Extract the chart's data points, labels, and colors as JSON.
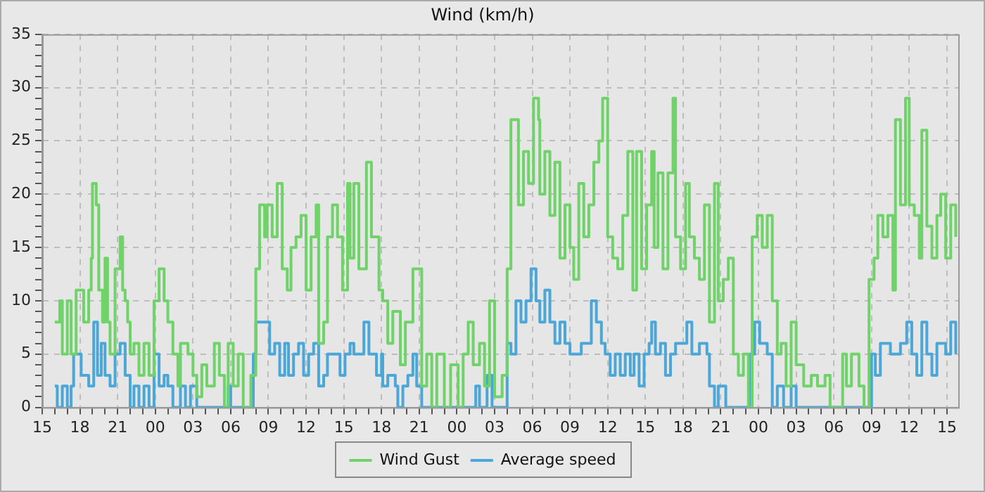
{
  "chart_data": {
    "type": "step",
    "title": "Wind (km/h)",
    "legend": "bottom",
    "grid": true,
    "line_style": "solid",
    "marker": "none",
    "xlim": [
      15,
      87.9
    ],
    "xticks": [
      {
        "value": 15,
        "label": "15"
      },
      {
        "value": 16,
        "label": null
      },
      {
        "value": 17,
        "label": null
      },
      {
        "value": 18,
        "label": "18"
      },
      {
        "value": 19,
        "label": null
      },
      {
        "value": 20,
        "label": null
      },
      {
        "value": 21,
        "label": "21"
      },
      {
        "value": 22,
        "label": null
      },
      {
        "value": 23,
        "label": null
      },
      {
        "value": 24,
        "label": "00"
      },
      {
        "value": 25,
        "label": null
      },
      {
        "value": 26,
        "label": null
      },
      {
        "value": 27,
        "label": "03"
      },
      {
        "value": 28,
        "label": null
      },
      {
        "value": 29,
        "label": null
      },
      {
        "value": 30,
        "label": "06"
      },
      {
        "value": 31,
        "label": null
      },
      {
        "value": 32,
        "label": null
      },
      {
        "value": 33,
        "label": "09"
      },
      {
        "value": 34,
        "label": null
      },
      {
        "value": 35,
        "label": null
      },
      {
        "value": 36,
        "label": "12"
      },
      {
        "value": 37,
        "label": null
      },
      {
        "value": 38,
        "label": null
      },
      {
        "value": 39,
        "label": "15"
      },
      {
        "value": 40,
        "label": null
      },
      {
        "value": 41,
        "label": null
      },
      {
        "value": 42,
        "label": "18"
      },
      {
        "value": 43,
        "label": null
      },
      {
        "value": 44,
        "label": null
      },
      {
        "value": 45,
        "label": "21"
      },
      {
        "value": 46,
        "label": null
      },
      {
        "value": 47,
        "label": null
      },
      {
        "value": 48,
        "label": "00"
      },
      {
        "value": 49,
        "label": null
      },
      {
        "value": 50,
        "label": null
      },
      {
        "value": 51,
        "label": "03"
      },
      {
        "value": 52,
        "label": null
      },
      {
        "value": 53,
        "label": null
      },
      {
        "value": 54,
        "label": "06"
      },
      {
        "value": 55,
        "label": null
      },
      {
        "value": 56,
        "label": null
      },
      {
        "value": 57,
        "label": "09"
      },
      {
        "value": 58,
        "label": null
      },
      {
        "value": 59,
        "label": null
      },
      {
        "value": 60,
        "label": "12"
      },
      {
        "value": 61,
        "label": null
      },
      {
        "value": 62,
        "label": null
      },
      {
        "value": 63,
        "label": "15"
      },
      {
        "value": 64,
        "label": null
      },
      {
        "value": 65,
        "label": null
      },
      {
        "value": 66,
        "label": "18"
      },
      {
        "value": 67,
        "label": null
      },
      {
        "value": 68,
        "label": null
      },
      {
        "value": 69,
        "label": "21"
      },
      {
        "value": 70,
        "label": null
      },
      {
        "value": 71,
        "label": null
      },
      {
        "value": 72,
        "label": "00"
      },
      {
        "value": 73,
        "label": null
      },
      {
        "value": 74,
        "label": null
      },
      {
        "value": 75,
        "label": "03"
      },
      {
        "value": 76,
        "label": null
      },
      {
        "value": 77,
        "label": null
      },
      {
        "value": 78,
        "label": "06"
      },
      {
        "value": 79,
        "label": null
      },
      {
        "value": 80,
        "label": null
      },
      {
        "value": 81,
        "label": "09"
      },
      {
        "value": 82,
        "label": null
      },
      {
        "value": 83,
        "label": null
      },
      {
        "value": 84,
        "label": "12"
      },
      {
        "value": 85,
        "label": null
      },
      {
        "value": 86,
        "label": null
      },
      {
        "value": 87,
        "label": "15"
      }
    ],
    "ylim": [
      0,
      35
    ],
    "yticks": [
      0,
      {
        "value": 1,
        "label": null
      },
      {
        "value": 2,
        "label": null
      },
      {
        "value": 3,
        "label": null
      },
      {
        "value": 4,
        "label": null
      },
      5,
      {
        "value": 6,
        "label": null
      },
      {
        "value": 7,
        "label": null
      },
      {
        "value": 8,
        "label": null
      },
      {
        "value": 9,
        "label": null
      },
      10,
      {
        "value": 11,
        "label": null
      },
      {
        "value": 12,
        "label": null
      },
      {
        "value": 13,
        "label": null
      },
      {
        "value": 14,
        "label": null
      },
      15,
      {
        "value": 16,
        "label": null
      },
      {
        "value": 17,
        "label": null
      },
      {
        "value": 18,
        "label": null
      },
      {
        "value": 19,
        "label": null
      },
      20,
      {
        "value": 21,
        "label": null
      },
      {
        "value": 22,
        "label": null
      },
      {
        "value": 23,
        "label": null
      },
      {
        "value": 24,
        "label": null
      },
      25,
      {
        "value": 26,
        "label": null
      },
      {
        "value": 27,
        "label": null
      },
      {
        "value": 28,
        "label": null
      },
      {
        "value": 29,
        "label": null
      },
      30,
      {
        "value": 31,
        "label": null
      },
      {
        "value": 32,
        "label": null
      },
      {
        "value": 33,
        "label": null
      },
      {
        "value": 34,
        "label": null
      },
      35
    ],
    "series": [
      {
        "name": "Wind Gust",
        "color": "#6fd36a",
        "x": [
          16.0,
          16.4,
          16.6,
          17.0,
          17.3,
          17.7,
          18.1,
          18.3,
          18.7,
          18.9,
          19.0,
          19.3,
          19.5,
          19.8,
          20.0,
          20.2,
          20.4,
          20.8,
          21.2,
          21.4,
          21.6,
          21.8,
          22.0,
          22.3,
          22.7,
          23.1,
          23.5,
          23.9,
          24.3,
          24.7,
          25.0,
          25.4,
          25.8,
          26.0,
          26.6,
          27.0,
          27.3,
          27.7,
          28.1,
          28.7,
          29.1,
          29.5,
          29.8,
          30.2,
          30.6,
          31.0,
          31.6,
          32.0,
          32.3,
          32.7,
          32.9,
          33.3,
          33.7,
          34.1,
          34.5,
          34.8,
          35.2,
          35.6,
          36.0,
          36.4,
          36.8,
          37.0,
          37.4,
          37.7,
          38.1,
          38.5,
          38.9,
          39.3,
          39.5,
          39.8,
          40.2,
          40.8,
          41.2,
          41.8,
          42.1,
          42.5,
          42.9,
          43.5,
          43.9,
          44.5,
          44.8,
          45.2,
          45.6,
          46.0,
          46.4,
          47.0,
          47.5,
          48.1,
          48.5,
          48.9,
          49.3,
          49.8,
          50.2,
          50.6,
          51.0,
          51.6,
          52.0,
          52.3,
          52.9,
          53.3,
          53.7,
          54.1,
          54.5,
          54.6,
          55.0,
          55.4,
          55.8,
          56.2,
          56.6,
          57.0,
          57.3,
          57.7,
          58.1,
          58.5,
          58.9,
          59.3,
          59.6,
          60.0,
          60.4,
          60.8,
          61.2,
          61.6,
          62.0,
          62.3,
          62.7,
          63.1,
          63.5,
          63.7,
          64.0,
          64.4,
          64.8,
          65.2,
          65.4,
          65.8,
          66.2,
          66.5,
          66.9,
          67.3,
          67.7,
          68.1,
          68.5,
          68.8,
          69.2,
          69.6,
          70.0,
          70.4,
          70.8,
          71.2,
          71.5,
          71.9,
          72.3,
          72.7,
          73.1,
          73.5,
          73.8,
          74.2,
          74.6,
          75.0,
          75.6,
          76.2,
          76.7,
          77.3,
          77.7,
          78.7,
          79.0,
          79.4,
          80.0,
          80.4,
          80.8,
          81.2,
          81.5,
          81.9,
          82.3,
          82.7,
          82.9,
          83.3,
          83.7,
          84.0,
          84.4,
          84.8,
          85.0,
          85.4,
          85.8,
          86.2,
          86.5,
          86.9,
          87.3,
          87.7
        ],
        "values": [
          8,
          10,
          5,
          10,
          5,
          11,
          11,
          8,
          11,
          14,
          21,
          19,
          11,
          8,
          14,
          8,
          5,
          13,
          16,
          11,
          10,
          8,
          5,
          6,
          3,
          6,
          3,
          10,
          13,
          10,
          8,
          5,
          2,
          6,
          5,
          3,
          1,
          4,
          2,
          6,
          3,
          0,
          6,
          2,
          5,
          0,
          3,
          13,
          19,
          16,
          19,
          16,
          21,
          13,
          11,
          15,
          16,
          18,
          11,
          16,
          19,
          6,
          8,
          16,
          19,
          16,
          11,
          21,
          14,
          21,
          13,
          23,
          16,
          11,
          10,
          6,
          9,
          4,
          8,
          13,
          13,
          2,
          5,
          0,
          5,
          0,
          4,
          0,
          5,
          8,
          4,
          6,
          2,
          10,
          1,
          3,
          13,
          27,
          19,
          24,
          21,
          29,
          27,
          20,
          24,
          18,
          23,
          14,
          19,
          15,
          12,
          21,
          16,
          19,
          23,
          25,
          29,
          16,
          14,
          13,
          18,
          24,
          11,
          24,
          13,
          19,
          24,
          15,
          22,
          13,
          22,
          29,
          16,
          13,
          21,
          16,
          14,
          12,
          19,
          8,
          21,
          10,
          12,
          14,
          5,
          3,
          5,
          0,
          16,
          18,
          15,
          18,
          10,
          5,
          6,
          2,
          8,
          4,
          2,
          3,
          2,
          3,
          0,
          5,
          2,
          5,
          2,
          0,
          12,
          14,
          18,
          16,
          18,
          11,
          27,
          19,
          29,
          19,
          18,
          14,
          26,
          17,
          14,
          18,
          20,
          14,
          19,
          16
        ]
      },
      {
        "name": "Average speed",
        "color": "#4aa7d8",
        "x": [
          16.0,
          16.2,
          16.6,
          17.0,
          17.3,
          17.5,
          18.1,
          18.7,
          19.1,
          19.4,
          19.7,
          20.0,
          20.4,
          20.8,
          21.2,
          21.6,
          22.0,
          22.3,
          22.7,
          23.1,
          23.5,
          23.9,
          24.3,
          24.7,
          25.0,
          25.4,
          26.0,
          26.4,
          26.8,
          27.3,
          29.8,
          30.0,
          31.8,
          32.0,
          33.1,
          33.5,
          33.9,
          34.3,
          34.6,
          35.0,
          35.4,
          35.8,
          36.2,
          36.6,
          37.0,
          37.4,
          37.7,
          38.1,
          38.7,
          39.1,
          39.5,
          39.8,
          40.6,
          41.0,
          41.6,
          42.0,
          42.1,
          42.5,
          43.1,
          43.3,
          43.7,
          44.1,
          44.5,
          44.8,
          45.2,
          49.5,
          49.8,
          50.4,
          50.8,
          52.0,
          52.3,
          52.7,
          53.1,
          53.5,
          53.9,
          54.3,
          54.6,
          55.0,
          55.4,
          55.8,
          56.2,
          56.6,
          57.0,
          57.9,
          58.7,
          59.1,
          59.5,
          59.8,
          60.2,
          60.6,
          61.0,
          61.4,
          61.8,
          62.1,
          62.5,
          62.9,
          63.3,
          63.5,
          63.8,
          64.2,
          64.6,
          65.0,
          65.4,
          66.3,
          66.7,
          67.3,
          67.9,
          68.1,
          68.5,
          68.8,
          69.4,
          71.3,
          71.7,
          72.1,
          72.7,
          73.1,
          73.5,
          74.0,
          74.6,
          75.0,
          81.0,
          81.3,
          81.7,
          82.5,
          83.3,
          83.8,
          84.2,
          84.6,
          85.0,
          85.4,
          85.8,
          86.2,
          86.9,
          87.3,
          87.7
        ],
        "values": [
          2,
          0,
          2,
          0,
          2,
          5,
          3,
          2,
          8,
          3,
          6,
          3,
          2,
          5,
          6,
          3,
          0,
          2,
          0,
          2,
          0,
          5,
          2,
          3,
          2,
          0,
          2,
          0,
          2,
          0,
          2,
          0,
          5,
          8,
          5,
          6,
          3,
          6,
          3,
          5,
          6,
          3,
          5,
          6,
          2,
          3,
          5,
          5,
          3,
          5,
          6,
          5,
          8,
          5,
          3,
          5,
          2,
          3,
          2,
          0,
          2,
          3,
          5,
          2,
          0,
          2,
          0,
          3,
          0,
          6,
          5,
          10,
          8,
          10,
          13,
          10,
          8,
          11,
          8,
          6,
          8,
          6,
          5,
          6,
          10,
          8,
          6,
          5,
          3,
          5,
          3,
          5,
          3,
          5,
          2,
          5,
          6,
          8,
          5,
          6,
          3,
          5,
          6,
          8,
          5,
          6,
          5,
          2,
          0,
          2,
          0,
          5,
          8,
          6,
          5,
          0,
          2,
          0,
          2,
          0,
          5,
          3,
          6,
          5,
          6,
          8,
          5,
          3,
          8,
          5,
          3,
          6,
          5,
          8,
          5
        ]
      }
    ]
  }
}
